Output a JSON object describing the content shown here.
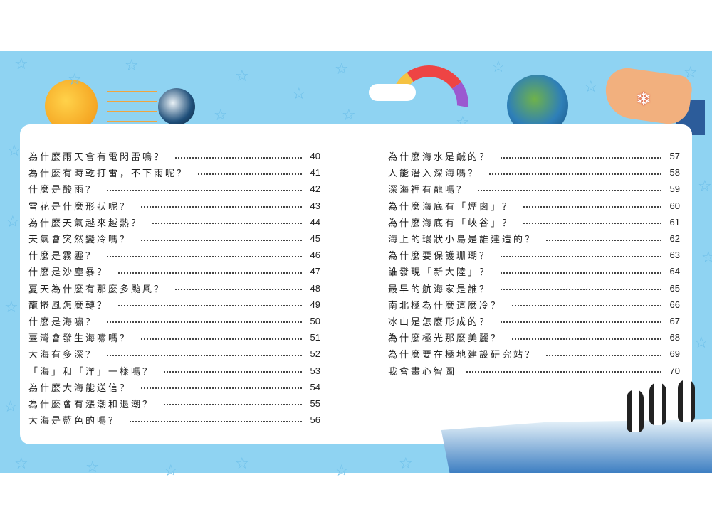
{
  "toc_left": [
    {
      "title": "為什麼雨天會有電閃雷鳴？",
      "page": "40"
    },
    {
      "title": "為什麼有時乾打雷，不下雨呢？",
      "page": "41"
    },
    {
      "title": "什麼是酸雨？",
      "page": "42"
    },
    {
      "title": "雪花是什麼形狀呢？",
      "page": "43"
    },
    {
      "title": "為什麼天氣越來越熱？",
      "page": "44"
    },
    {
      "title": "天氣會突然變冷嗎？",
      "page": "45"
    },
    {
      "title": "什麼是霧霾？",
      "page": "46"
    },
    {
      "title": "什麼是沙塵暴？",
      "page": "47"
    },
    {
      "title": "夏天為什麼有那麼多颱風？",
      "page": "48"
    },
    {
      "title": "龍捲風怎麼轉？",
      "page": "49"
    },
    {
      "title": "什麼是海嘯？",
      "page": "50"
    },
    {
      "title": "臺灣會發生海嘯嗎？",
      "page": "51"
    },
    {
      "title": "大海有多深？",
      "page": "52"
    },
    {
      "title": "「海」和「洋」一樣嗎？",
      "page": "53"
    },
    {
      "title": "為什麼大海能送信？",
      "page": "54"
    },
    {
      "title": "為什麼會有漲潮和退潮？",
      "page": "55"
    },
    {
      "title": "大海是藍色的嗎？",
      "page": "56"
    }
  ],
  "toc_right": [
    {
      "title": "為什麼海水是鹹的？",
      "page": "57"
    },
    {
      "title": "人能潛入深海嗎？",
      "page": "58"
    },
    {
      "title": "深海裡有龍嗎？",
      "page": "59"
    },
    {
      "title": "為什麼海底有「煙囪」？",
      "page": "60"
    },
    {
      "title": "為什麼海底有「峽谷」？",
      "page": "61"
    },
    {
      "title": "海上的環狀小島是誰建造的？",
      "page": "62"
    },
    {
      "title": "為什麼要保護珊瑚？",
      "page": "63"
    },
    {
      "title": "誰發現「新大陸」？",
      "page": "64"
    },
    {
      "title": "最早的航海家是誰？",
      "page": "65"
    },
    {
      "title": "南北極為什麼這麼冷？",
      "page": "66"
    },
    {
      "title": "冰山是怎麼形成的？",
      "page": "67"
    },
    {
      "title": "為什麼極光那麼美麗？",
      "page": "68"
    },
    {
      "title": "為什麼要在極地建設研究站？",
      "page": "69"
    },
    {
      "title": "我會畫心智圖",
      "page": "70"
    }
  ],
  "colors": {
    "background": "#8fd3f2",
    "card": "#ffffff",
    "text": "#222222"
  }
}
